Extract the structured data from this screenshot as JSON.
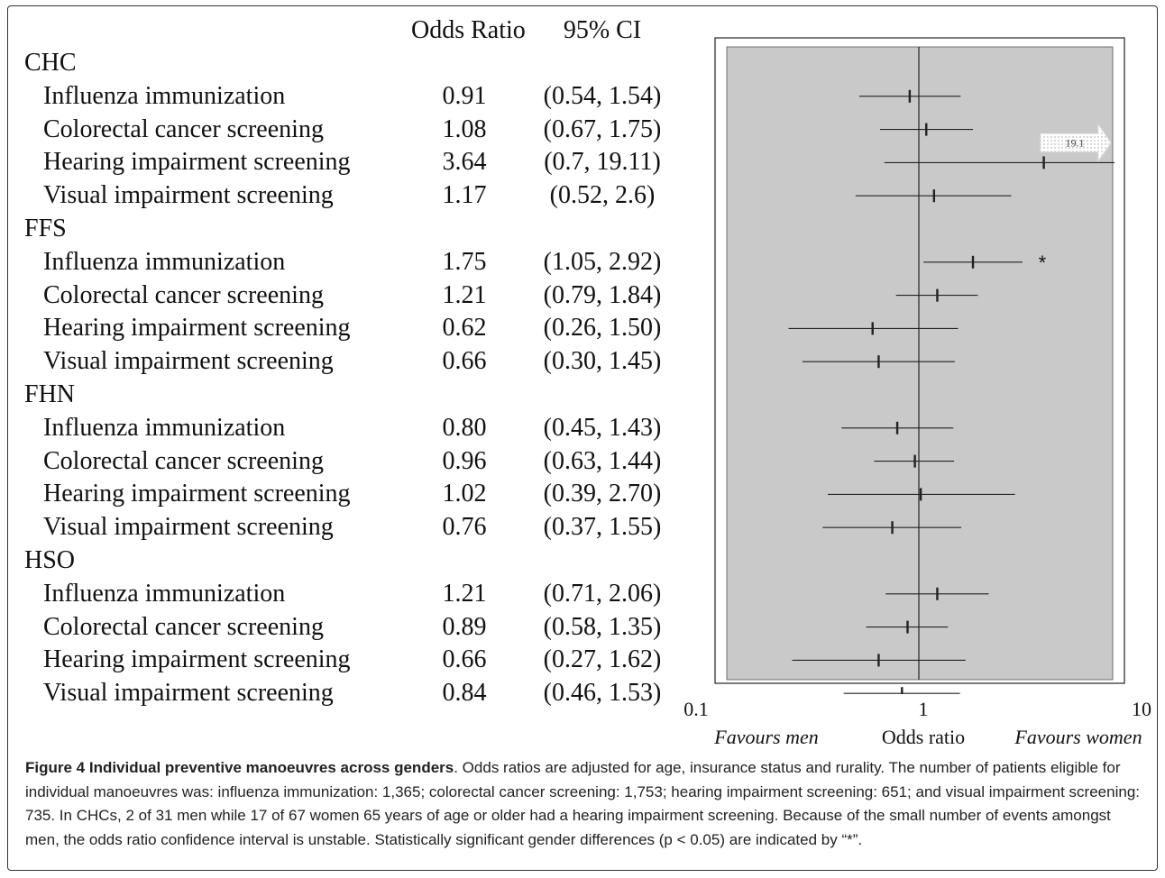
{
  "table": {
    "col_or": "Odds Ratio",
    "col_ci": "95% CI"
  },
  "chart_data": {
    "type": "forest",
    "x_scale": "log",
    "xlim": [
      0.1,
      10
    ],
    "x_ticks": [
      "0.1",
      "1",
      "10"
    ],
    "reference_line": 1,
    "xlabel": "Odds ratio",
    "left_label": "Favours men",
    "right_label": "Favours women",
    "overflow_label": "19.1",
    "significance_marker": "*",
    "colors": {
      "panel": "#c9c9c9",
      "line": "#222222",
      "arrow": "#ffffff"
    },
    "groups": [
      {
        "name": "CHC",
        "rows": [
          {
            "label": "Influenza immunization",
            "or_text": "0.91",
            "ci_text": "(0.54, 1.54)",
            "or": 0.91,
            "lo": 0.54,
            "hi": 1.54,
            "sig": false
          },
          {
            "label": "Colorectal cancer screening",
            "or_text": "1.08",
            "ci_text": "(0.67, 1.75)",
            "or": 1.08,
            "lo": 0.67,
            "hi": 1.75,
            "sig": false
          },
          {
            "label": "Hearing impairment screening",
            "or_text": "3.64",
            "ci_text": "(0.7, 19.11)",
            "or": 3.64,
            "lo": 0.7,
            "hi": 19.11,
            "sig": false,
            "overflow": true
          },
          {
            "label": "Visual impairment screening",
            "or_text": "1.17",
            "ci_text": "(0.52, 2.6)",
            "or": 1.17,
            "lo": 0.52,
            "hi": 2.6,
            "sig": false
          }
        ]
      },
      {
        "name": "FFS",
        "rows": [
          {
            "label": "Influenza immunization",
            "or_text": "1.75",
            "ci_text": "(1.05, 2.92)",
            "or": 1.75,
            "lo": 1.05,
            "hi": 2.92,
            "sig": true
          },
          {
            "label": "Colorectal cancer screening",
            "or_text": "1.21",
            "ci_text": "(0.79, 1.84)",
            "or": 1.21,
            "lo": 0.79,
            "hi": 1.84,
            "sig": false
          },
          {
            "label": "Hearing impairment screening",
            "or_text": "0.62",
            "ci_text": "(0.26, 1.50)",
            "or": 0.62,
            "lo": 0.26,
            "hi": 1.5,
            "sig": false
          },
          {
            "label": "Visual impairment screening",
            "or_text": "0.66",
            "ci_text": "(0.30, 1.45)",
            "or": 0.66,
            "lo": 0.3,
            "hi": 1.45,
            "sig": false
          }
        ]
      },
      {
        "name": "FHN",
        "rows": [
          {
            "label": "Influenza immunization",
            "or_text": "0.80",
            "ci_text": "(0.45, 1.43)",
            "or": 0.8,
            "lo": 0.45,
            "hi": 1.43,
            "sig": false
          },
          {
            "label": "Colorectal cancer screening",
            "or_text": "0.96",
            "ci_text": "(0.63, 1.44)",
            "or": 0.96,
            "lo": 0.63,
            "hi": 1.44,
            "sig": false
          },
          {
            "label": "Hearing impairment screening",
            "or_text": "1.02",
            "ci_text": "(0.39, 2.70)",
            "or": 1.02,
            "lo": 0.39,
            "hi": 2.7,
            "sig": false
          },
          {
            "label": "Visual impairment screening",
            "or_text": "0.76",
            "ci_text": "(0.37, 1.55)",
            "or": 0.76,
            "lo": 0.37,
            "hi": 1.55,
            "sig": false
          }
        ]
      },
      {
        "name": "HSO",
        "rows": [
          {
            "label": "Influenza immunization",
            "or_text": "1.21",
            "ci_text": "(0.71, 2.06)",
            "or": 1.21,
            "lo": 0.71,
            "hi": 2.06,
            "sig": false
          },
          {
            "label": "Colorectal cancer screening",
            "or_text": "0.89",
            "ci_text": "(0.58, 1.35)",
            "or": 0.89,
            "lo": 0.58,
            "hi": 1.35,
            "sig": false
          },
          {
            "label": "Hearing impairment screening",
            "or_text": "0.66",
            "ci_text": "(0.27, 1.62)",
            "or": 0.66,
            "lo": 0.27,
            "hi": 1.62,
            "sig": false
          },
          {
            "label": "Visual impairment screening",
            "or_text": "0.84",
            "ci_text": "(0.46, 1.53)",
            "or": 0.84,
            "lo": 0.46,
            "hi": 1.53,
            "sig": false
          }
        ]
      }
    ]
  },
  "caption": {
    "title": "Figure 4 Individual preventive manoeuvres across genders",
    "body": ". Odds ratios are adjusted for age, insurance status and rurality. The number of patients eligible for individual manoeuvres was: influenza immunization: 1,365; colorectal cancer screening: 1,753; hearing impairment screening: 651; and visual impairment screening: 735. In CHCs, 2 of 31 men while 17 of 67 women 65 years of age or older had a hearing impairment screening. Because of the small number of events amongst men, the odds ratio confidence interval is unstable. Statistically significant gender differences (p < 0.05) are indicated by “*”."
  }
}
